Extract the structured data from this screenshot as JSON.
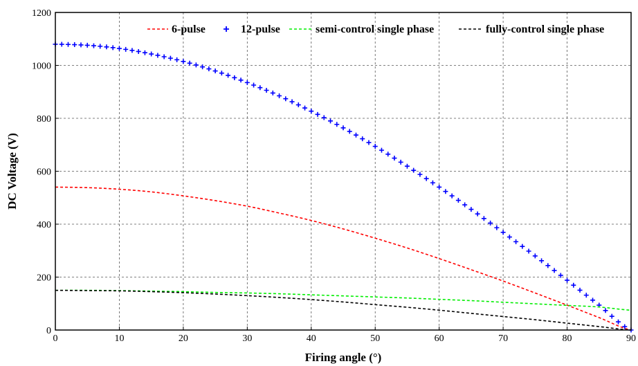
{
  "chart_data": {
    "type": "line",
    "title": "",
    "xlabel": "Firing angle (°)",
    "ylabel": "DC Voltage (V)",
    "xlim": [
      0,
      90
    ],
    "ylim": [
      0,
      1200
    ],
    "xticks": [
      0,
      10,
      20,
      30,
      40,
      50,
      60,
      70,
      80,
      90
    ],
    "yticks": [
      0,
      200,
      400,
      600,
      800,
      1000,
      1200
    ],
    "grid": true,
    "grid_style": "dashed",
    "legend_position": "top",
    "x": [
      0,
      5,
      10,
      15,
      20,
      25,
      30,
      35,
      40,
      45,
      50,
      55,
      60,
      65,
      70,
      75,
      80,
      85,
      90
    ],
    "series": [
      {
        "name": "6-pulse",
        "color": "#ff0000",
        "style": "dashed",
        "values": [
          540,
          538,
          532,
          522,
          507,
          489,
          468,
          442,
          414,
          382,
          347,
          310,
          270,
          228,
          185,
          140,
          94,
          47,
          0
        ]
      },
      {
        "name": "12-pulse",
        "color": "#0000ff",
        "style": "plus-markers",
        "values": [
          1080,
          1076,
          1064,
          1043,
          1015,
          979,
          935,
          885,
          827,
          764,
          694,
          619,
          540,
          456,
          369,
          280,
          188,
          94,
          0
        ]
      },
      {
        "name": "semi-control single phase",
        "color": "#00ee00",
        "style": "dashed",
        "values": [
          150,
          150,
          149,
          147,
          145,
          142,
          140,
          137,
          133,
          129,
          125,
          121,
          116,
          111,
          105,
          99,
          93,
          87,
          75
        ]
      },
      {
        "name": "fully-control single phase",
        "color": "#000000",
        "style": "dashed",
        "values": [
          150,
          149,
          148,
          145,
          141,
          136,
          130,
          123,
          115,
          106,
          96,
          86,
          75,
          63,
          51,
          39,
          26,
          13,
          0
        ]
      }
    ]
  }
}
